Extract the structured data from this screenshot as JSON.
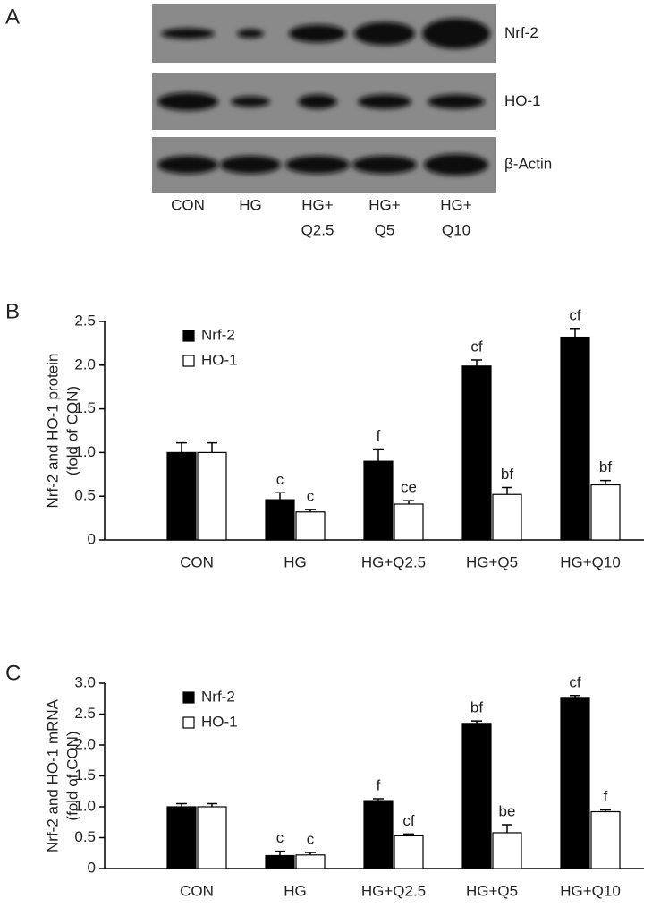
{
  "blot": {
    "panel_label": "A",
    "rows": [
      "Nrf-2",
      "HO-1",
      "β-Actin"
    ],
    "lanes": [
      [
        "CON"
      ],
      [
        "HG"
      ],
      [
        "HG+",
        "Q2.5"
      ],
      [
        "HG+",
        "Q5"
      ],
      [
        "HG+",
        "Q10"
      ]
    ]
  },
  "chart_data": [
    {
      "type": "bar",
      "panel_label": "B",
      "ylabel": [
        "Nrf-2 and HO-1 protein",
        "(fold of CON)"
      ],
      "categories": [
        "CON",
        "HG",
        "HG+Q2.5",
        "HG+Q5",
        "HG+Q10"
      ],
      "series": [
        {
          "name": "Nrf-2",
          "color": "#000000",
          "values": [
            1.0,
            0.46,
            0.9,
            1.99,
            2.32
          ],
          "errors": [
            0.11,
            0.08,
            0.14,
            0.07,
            0.1
          ],
          "labels": [
            null,
            "c",
            "f",
            "cf",
            "cf"
          ]
        },
        {
          "name": "HO-1",
          "color": "#ffffff",
          "values": [
            1.0,
            0.32,
            0.41,
            0.52,
            0.63
          ],
          "errors": [
            0.11,
            0.03,
            0.04,
            0.08,
            0.05
          ],
          "labels": [
            null,
            "c",
            "ce",
            "bf",
            "bf"
          ]
        }
      ],
      "ylim": [
        0,
        2.5
      ],
      "yticks": [
        0,
        {
          "value": 0.5,
          "label": "0.5"
        },
        {
          "value": 1,
          "label": "1.0"
        },
        {
          "value": 1.5,
          "label": "1.5"
        },
        {
          "value": 2,
          "label": "2.0"
        },
        {
          "value": 2.5,
          "label": "2.5"
        }
      ],
      "legend": "upper left",
      "grid": false
    },
    {
      "type": "bar",
      "panel_label": "C",
      "ylabel": [
        "Nrf-2 and HO-1 mRNA",
        "(fold of CON)"
      ],
      "categories": [
        "CON",
        "HG",
        "HG+Q2.5",
        "HG+Q5",
        "HG+Q10"
      ],
      "series": [
        {
          "name": "Nrf-2",
          "color": "#000000",
          "values": [
            1.0,
            0.21,
            1.1,
            2.35,
            2.77
          ],
          "errors": [
            0.05,
            0.07,
            0.03,
            0.04,
            0.03
          ],
          "labels": [
            null,
            "c",
            "f",
            "bf",
            "cf"
          ]
        },
        {
          "name": "HO-1",
          "color": "#ffffff",
          "values": [
            1.0,
            0.22,
            0.53,
            0.58,
            0.92
          ],
          "errors": [
            0.05,
            0.04,
            0.03,
            0.13,
            0.03
          ],
          "labels": [
            null,
            "c",
            "cf",
            "be",
            "f"
          ]
        }
      ],
      "ylim": [
        0,
        3
      ],
      "yticks": [
        0,
        {
          "value": 0.5,
          "label": "0.5"
        },
        {
          "value": 1,
          "label": "1.0"
        },
        {
          "value": 1.5,
          "label": "1.5"
        },
        {
          "value": 2,
          "label": "2.0"
        },
        {
          "value": 2.5,
          "label": "2.5"
        },
        {
          "value": 3,
          "label": "3.0"
        }
      ],
      "legend": "upper left",
      "grid": false
    }
  ]
}
